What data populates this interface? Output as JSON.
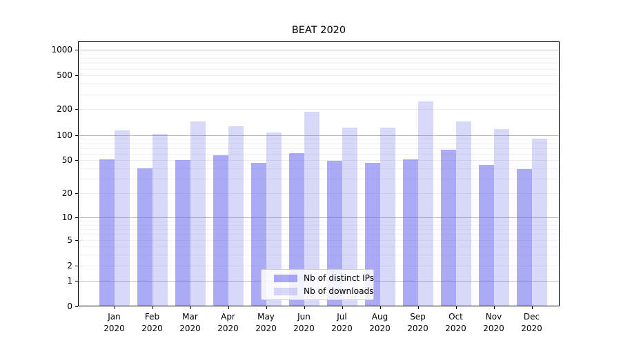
{
  "title": "BEAT 2020",
  "chart_data": {
    "type": "bar",
    "title": "BEAT 2020",
    "categories": [
      "Jan 2020",
      "Feb 2020",
      "Mar 2020",
      "Apr 2020",
      "May 2020",
      "Jun 2020",
      "Jul 2020",
      "Aug 2020",
      "Sep 2020",
      "Oct 2020",
      "Nov 2020",
      "Dec 2020"
    ],
    "series": [
      {
        "name": "Nb of distinct IPs",
        "color": "rgba(100,100,240,0.55)",
        "values": [
          51,
          40,
          50,
          57,
          47,
          61,
          49,
          47,
          51,
          67,
          44,
          39
        ]
      },
      {
        "name": "Nb of downloads",
        "color": "rgba(100,100,240,0.25)",
        "values": [
          114,
          102,
          144,
          127,
          107,
          187,
          123,
          121,
          250,
          143,
          118,
          90
        ]
      }
    ],
    "xlabel": "",
    "ylabel": "",
    "y_scale": "symlog",
    "y_ticks": [
      1000,
      500,
      200,
      100,
      50,
      20,
      10,
      5,
      2,
      1,
      0
    ],
    "y_minor_ticks": [
      900,
      800,
      700,
      600,
      400,
      300,
      90,
      80,
      70,
      60,
      40,
      30,
      9,
      8,
      7,
      6,
      4,
      3
    ],
    "ylim": [
      0,
      1280
    ],
    "grid": true,
    "legend_position": "lower center",
    "colors": {
      "grid_major_power10": "#bbbbbb",
      "grid_regular": "#ececec",
      "grid_minor": "#f1f1f1",
      "spine": "#000000",
      "background": "#ffffff"
    }
  }
}
